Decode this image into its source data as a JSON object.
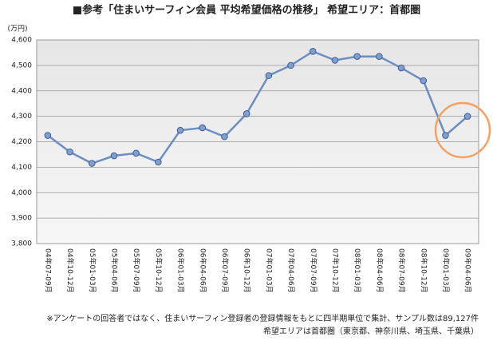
{
  "chart_data": {
    "type": "line",
    "title": "■参考「住まいサーフィン会員 平均希望価格の推移」 希望エリア：首都圏",
    "y_label": "(万円)",
    "categories": [
      "04年07-09月",
      "04年10-12月",
      "05年01-03月",
      "05年04-06月",
      "05年07-09月",
      "05年10-12月",
      "06年01-03月",
      "06年04-06月",
      "06年07-09月",
      "06年10-12月",
      "07年01-03月",
      "07年04-06月",
      "07年07-09月",
      "07年10-12月",
      "08年01-03月",
      "08年04-06月",
      "08年07-09月",
      "08年10-12月",
      "09年01-03月",
      "09年04-06月"
    ],
    "values": [
      4225,
      4160,
      4115,
      4145,
      4155,
      4120,
      4245,
      4255,
      4220,
      4310,
      4460,
      4500,
      4555,
      4520,
      4535,
      4535,
      4490,
      4440,
      4225,
      4300
    ],
    "color": "#6c8ec0",
    "ylim": [
      3800,
      4600
    ],
    "yticks": [
      {
        "value": 3800,
        "label": "3,800"
      },
      {
        "value": 3900,
        "label": "3,900"
      },
      {
        "value": 4000,
        "label": "4,000"
      },
      {
        "value": 4100,
        "label": "4,100"
      },
      {
        "value": 4200,
        "label": "4,200"
      },
      {
        "value": 4300,
        "label": "4,300"
      },
      {
        "value": 4400,
        "label": "4,400"
      },
      {
        "value": 4500,
        "label": "4,500"
      },
      {
        "value": 4600,
        "label": "4,600"
      }
    ],
    "grid": true,
    "footnotes": [
      "※アンケートの回答者ではなく、住まいサーフィン登録者の登録情報をもとに四半期単位で集計、サンプル数は89,127件",
      "希望エリアは首都圏（東京都、神奈川県、埼玉県、千葉県）"
    ]
  }
}
